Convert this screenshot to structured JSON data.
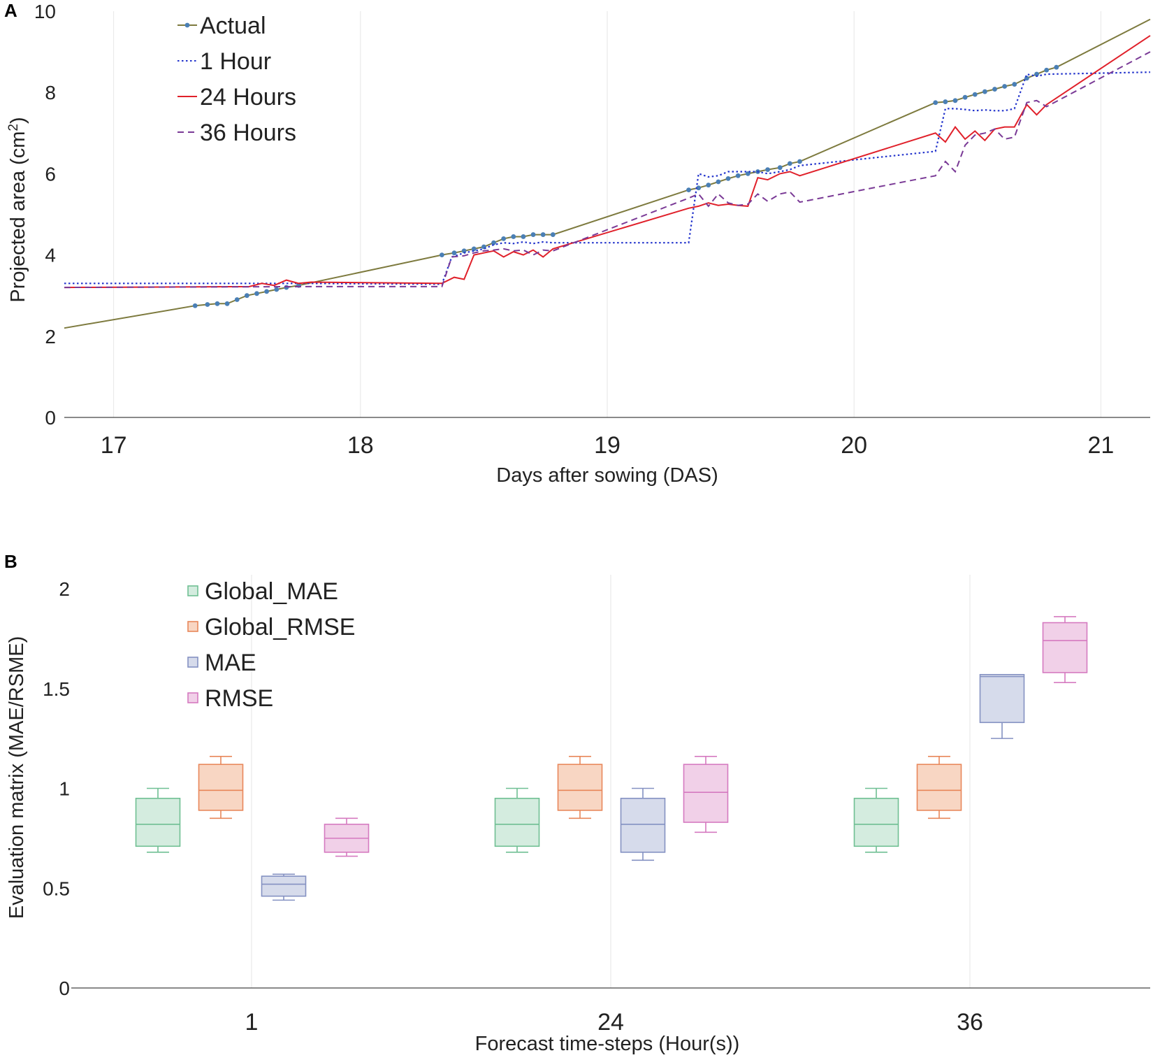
{
  "chart_data": [
    {
      "panel": "A",
      "type": "line",
      "xlabel": "Days after sowing (DAS)",
      "ylabel": "Projected area (cm²)",
      "ylabel_main": "Projected area (cm",
      "ylabel_sup": "2",
      "ylabel_close": ")",
      "xlim": [
        16.8,
        21.2
      ],
      "ylim": [
        0,
        10
      ],
      "xticks": [
        17,
        18,
        19,
        20,
        21
      ],
      "yticks": [
        0,
        2,
        4,
        6,
        8,
        10
      ],
      "legend_position": "top-left",
      "series": [
        {
          "name": "Actual",
          "color": "#7d7a3e",
          "marker_color": "#4a7fb5",
          "style": "solid",
          "points": [
            [
              16.8,
              2.2
            ],
            [
              17.33,
              2.75
            ],
            [
              17.38,
              2.78
            ],
            [
              17.42,
              2.8
            ],
            [
              17.46,
              2.8
            ],
            [
              17.5,
              2.9
            ],
            [
              17.54,
              3.0
            ],
            [
              17.58,
              3.05
            ],
            [
              17.62,
              3.1
            ],
            [
              17.66,
              3.15
            ],
            [
              17.7,
              3.2
            ],
            [
              17.75,
              3.25
            ],
            [
              18.33,
              4.0
            ],
            [
              18.38,
              4.05
            ],
            [
              18.42,
              4.1
            ],
            [
              18.46,
              4.15
            ],
            [
              18.5,
              4.2
            ],
            [
              18.54,
              4.3
            ],
            [
              18.58,
              4.4
            ],
            [
              18.62,
              4.45
            ],
            [
              18.66,
              4.45
            ],
            [
              18.7,
              4.5
            ],
            [
              18.74,
              4.5
            ],
            [
              18.78,
              4.5
            ],
            [
              19.33,
              5.6
            ],
            [
              19.37,
              5.65
            ],
            [
              19.41,
              5.72
            ],
            [
              19.45,
              5.8
            ],
            [
              19.49,
              5.88
            ],
            [
              19.53,
              5.95
            ],
            [
              19.57,
              6.0
            ],
            [
              19.61,
              6.05
            ],
            [
              19.65,
              6.1
            ],
            [
              19.7,
              6.15
            ],
            [
              19.74,
              6.25
            ],
            [
              19.78,
              6.3
            ],
            [
              20.33,
              7.75
            ],
            [
              20.37,
              7.77
            ],
            [
              20.41,
              7.8
            ],
            [
              20.45,
              7.88
            ],
            [
              20.49,
              7.95
            ],
            [
              20.53,
              8.02
            ],
            [
              20.57,
              8.08
            ],
            [
              20.61,
              8.15
            ],
            [
              20.65,
              8.2
            ],
            [
              20.7,
              8.35
            ],
            [
              20.74,
              8.45
            ],
            [
              20.78,
              8.55
            ],
            [
              20.82,
              8.62
            ],
            [
              21.2,
              9.8
            ]
          ],
          "marker_points": [
            [
              17.33,
              2.75
            ],
            [
              17.38,
              2.78
            ],
            [
              17.42,
              2.8
            ],
            [
              17.46,
              2.8
            ],
            [
              17.5,
              2.9
            ],
            [
              17.54,
              3.0
            ],
            [
              17.58,
              3.05
            ],
            [
              17.62,
              3.1
            ],
            [
              17.66,
              3.15
            ],
            [
              17.7,
              3.2
            ],
            [
              17.75,
              3.25
            ],
            [
              18.33,
              4.0
            ],
            [
              18.38,
              4.05
            ],
            [
              18.42,
              4.1
            ],
            [
              18.46,
              4.15
            ],
            [
              18.5,
              4.2
            ],
            [
              18.54,
              4.3
            ],
            [
              18.58,
              4.4
            ],
            [
              18.62,
              4.45
            ],
            [
              18.66,
              4.45
            ],
            [
              18.7,
              4.5
            ],
            [
              18.74,
              4.5
            ],
            [
              18.78,
              4.5
            ],
            [
              19.33,
              5.6
            ],
            [
              19.37,
              5.65
            ],
            [
              19.41,
              5.72
            ],
            [
              19.45,
              5.8
            ],
            [
              19.49,
              5.88
            ],
            [
              19.53,
              5.95
            ],
            [
              19.57,
              6.0
            ],
            [
              19.61,
              6.05
            ],
            [
              19.65,
              6.1
            ],
            [
              19.7,
              6.15
            ],
            [
              19.74,
              6.25
            ],
            [
              19.78,
              6.3
            ],
            [
              20.33,
              7.75
            ],
            [
              20.37,
              7.77
            ],
            [
              20.41,
              7.8
            ],
            [
              20.45,
              7.88
            ],
            [
              20.49,
              7.95
            ],
            [
              20.53,
              8.02
            ],
            [
              20.57,
              8.08
            ],
            [
              20.61,
              8.15
            ],
            [
              20.65,
              8.2
            ],
            [
              20.7,
              8.35
            ],
            [
              20.74,
              8.45
            ],
            [
              20.78,
              8.55
            ],
            [
              20.82,
              8.62
            ]
          ]
        },
        {
          "name": "1 Hour",
          "color": "#2233cc",
          "style": "dotted",
          "points": [
            [
              16.8,
              3.3
            ],
            [
              17.8,
              3.3
            ],
            [
              18.33,
              3.28
            ],
            [
              18.37,
              3.95
            ],
            [
              18.42,
              4.05
            ],
            [
              18.46,
              4.1
            ],
            [
              18.5,
              4.15
            ],
            [
              18.54,
              4.25
            ],
            [
              18.58,
              4.3
            ],
            [
              18.62,
              4.28
            ],
            [
              18.66,
              4.32
            ],
            [
              18.7,
              4.28
            ],
            [
              18.74,
              4.32
            ],
            [
              18.78,
              4.3
            ],
            [
              19.33,
              4.3
            ],
            [
              19.37,
              6.0
            ],
            [
              19.41,
              5.92
            ],
            [
              19.45,
              5.95
            ],
            [
              19.49,
              6.05
            ],
            [
              19.53,
              6.05
            ],
            [
              19.57,
              6.05
            ],
            [
              19.61,
              6.05
            ],
            [
              19.65,
              6.0
            ],
            [
              19.7,
              6.05
            ],
            [
              19.74,
              6.1
            ],
            [
              19.78,
              6.2
            ],
            [
              20.33,
              6.55
            ],
            [
              20.37,
              7.6
            ],
            [
              20.41,
              7.6
            ],
            [
              20.45,
              7.58
            ],
            [
              20.49,
              7.55
            ],
            [
              20.53,
              7.57
            ],
            [
              20.57,
              7.55
            ],
            [
              20.61,
              7.55
            ],
            [
              20.65,
              7.6
            ],
            [
              20.7,
              8.45
            ],
            [
              20.74,
              8.4
            ],
            [
              20.78,
              8.45
            ],
            [
              21.2,
              8.5
            ]
          ]
        },
        {
          "name": "24 Hours",
          "color": "#e0202a",
          "style": "solid",
          "points": [
            [
              16.8,
              3.2
            ],
            [
              17.55,
              3.22
            ],
            [
              17.6,
              3.3
            ],
            [
              17.65,
              3.25
            ],
            [
              17.7,
              3.38
            ],
            [
              17.75,
              3.3
            ],
            [
              17.8,
              3.33
            ],
            [
              18.33,
              3.3
            ],
            [
              18.38,
              3.45
            ],
            [
              18.42,
              3.4
            ],
            [
              18.46,
              4.0
            ],
            [
              18.5,
              4.05
            ],
            [
              18.54,
              4.1
            ],
            [
              18.58,
              3.95
            ],
            [
              18.62,
              4.08
            ],
            [
              18.66,
              4.0
            ],
            [
              18.7,
              4.12
            ],
            [
              18.74,
              3.95
            ],
            [
              18.78,
              4.15
            ],
            [
              19.33,
              5.15
            ],
            [
              19.37,
              5.2
            ],
            [
              19.41,
              5.28
            ],
            [
              19.45,
              5.22
            ],
            [
              19.49,
              5.25
            ],
            [
              19.53,
              5.22
            ],
            [
              19.57,
              5.2
            ],
            [
              19.61,
              5.9
            ],
            [
              19.65,
              5.85
            ],
            [
              19.7,
              6.0
            ],
            [
              19.74,
              6.05
            ],
            [
              19.78,
              5.95
            ],
            [
              20.33,
              7.0
            ],
            [
              20.37,
              6.78
            ],
            [
              20.41,
              7.15
            ],
            [
              20.45,
              6.85
            ],
            [
              20.49,
              7.05
            ],
            [
              20.53,
              6.82
            ],
            [
              20.57,
              7.1
            ],
            [
              20.61,
              7.15
            ],
            [
              20.65,
              7.15
            ],
            [
              20.7,
              7.7
            ],
            [
              20.74,
              7.45
            ],
            [
              20.78,
              7.7
            ],
            [
              21.2,
              9.4
            ]
          ]
        },
        {
          "name": "36 Hours",
          "color": "#7a3a96",
          "style": "dashed",
          "points": [
            [
              16.8,
              3.2
            ],
            [
              17.8,
              3.22
            ],
            [
              18.33,
              3.22
            ],
            [
              18.37,
              3.95
            ],
            [
              18.42,
              3.98
            ],
            [
              18.46,
              4.05
            ],
            [
              18.5,
              4.1
            ],
            [
              18.54,
              4.12
            ],
            [
              18.58,
              4.15
            ],
            [
              18.62,
              4.1
            ],
            [
              18.66,
              4.12
            ],
            [
              18.7,
              4.0
            ],
            [
              18.74,
              4.12
            ],
            [
              18.78,
              4.1
            ],
            [
              19.33,
              5.4
            ],
            [
              19.37,
              5.5
            ],
            [
              19.41,
              5.2
            ],
            [
              19.45,
              5.5
            ],
            [
              19.49,
              5.28
            ],
            [
              19.53,
              5.22
            ],
            [
              19.57,
              5.25
            ],
            [
              19.61,
              5.5
            ],
            [
              19.65,
              5.32
            ],
            [
              19.7,
              5.5
            ],
            [
              19.74,
              5.55
            ],
            [
              19.78,
              5.3
            ],
            [
              20.33,
              5.95
            ],
            [
              20.37,
              6.3
            ],
            [
              20.41,
              6.05
            ],
            [
              20.45,
              6.7
            ],
            [
              20.49,
              6.95
            ],
            [
              20.53,
              7.0
            ],
            [
              20.57,
              7.1
            ],
            [
              20.61,
              6.85
            ],
            [
              20.65,
              6.9
            ],
            [
              20.7,
              7.75
            ],
            [
              20.74,
              7.8
            ],
            [
              20.78,
              7.65
            ],
            [
              21.2,
              9.0
            ]
          ]
        }
      ]
    },
    {
      "panel": "B",
      "type": "box",
      "xlabel": "Forecast time-steps (Hour(s))",
      "ylabel": "Evaluation matrix (MAE/RSME)",
      "categories": [
        "1",
        "24",
        "36"
      ],
      "ylim": [
        0,
        2
      ],
      "yticks": [
        "0",
        "0.5",
        "1",
        "1.5",
        "2"
      ],
      "legend_position": "top-left",
      "series": [
        {
          "name": "Global_MAE",
          "fill": "#d4ecdf",
          "stroke": "#6fbf93",
          "boxes": [
            {
              "min": 0.68,
              "q1": 0.71,
              "median": 0.82,
              "q3": 0.95,
              "max": 1.0
            },
            {
              "min": 0.68,
              "q1": 0.71,
              "median": 0.82,
              "q3": 0.95,
              "max": 1.0
            },
            {
              "min": 0.68,
              "q1": 0.71,
              "median": 0.82,
              "q3": 0.95,
              "max": 1.0
            }
          ]
        },
        {
          "name": "Global_RMSE",
          "fill": "#f8d6c3",
          "stroke": "#e8875a",
          "boxes": [
            {
              "min": 0.85,
              "q1": 0.89,
              "median": 0.99,
              "q3": 1.12,
              "max": 1.16
            },
            {
              "min": 0.85,
              "q1": 0.89,
              "median": 0.99,
              "q3": 1.12,
              "max": 1.16
            },
            {
              "min": 0.85,
              "q1": 0.89,
              "median": 0.99,
              "q3": 1.12,
              "max": 1.16
            }
          ]
        },
        {
          "name": "MAE",
          "fill": "#d6dbeb",
          "stroke": "#8491c2",
          "boxes": [
            {
              "min": 0.44,
              "q1": 0.46,
              "median": 0.52,
              "q3": 0.56,
              "max": 0.57
            },
            {
              "min": 0.64,
              "q1": 0.68,
              "median": 0.82,
              "q3": 0.95,
              "max": 1.0
            },
            {
              "min": 1.25,
              "q1": 1.33,
              "median": 1.56,
              "q3": 1.57,
              "max": 1.57
            }
          ]
        },
        {
          "name": "RMSE",
          "fill": "#f1d0e8",
          "stroke": "#d57ac0",
          "boxes": [
            {
              "min": 0.66,
              "q1": 0.68,
              "median": 0.75,
              "q3": 0.82,
              "max": 0.85
            },
            {
              "min": 0.78,
              "q1": 0.83,
              "median": 0.98,
              "q3": 1.12,
              "max": 1.16
            },
            {
              "min": 1.53,
              "q1": 1.58,
              "median": 1.74,
              "q3": 1.83,
              "max": 1.86
            }
          ]
        }
      ]
    }
  ]
}
